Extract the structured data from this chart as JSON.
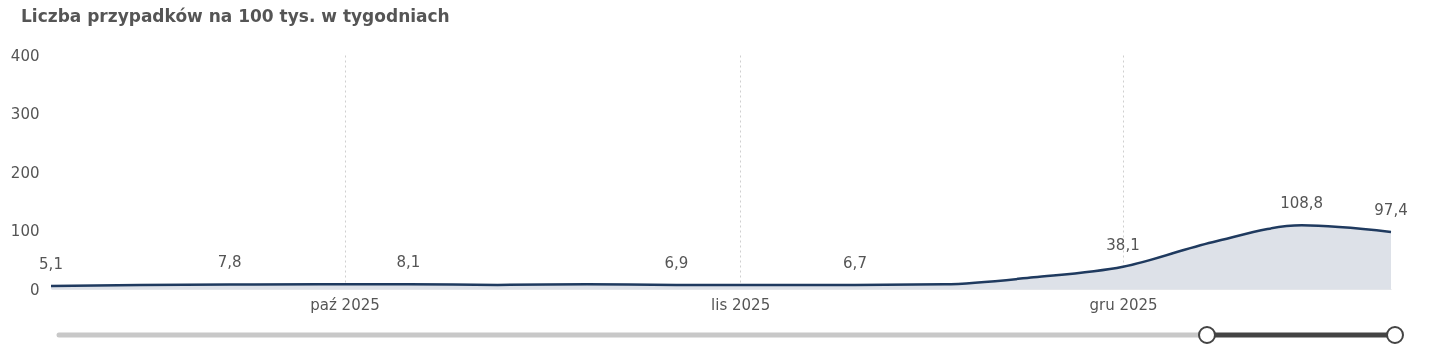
{
  "chart_data": {
    "type": "area",
    "title": "Liczba przypadków na 100 tys. w tygodniach",
    "x": [
      "2025-09-08",
      "2025-09-15",
      "2025-09-22",
      "2025-09-29",
      "2025-10-06",
      "2025-10-13",
      "2025-10-20",
      "2025-10-27",
      "2025-11-03",
      "2025-11-10",
      "2025-11-17",
      "2025-11-24",
      "2025-12-01",
      "2025-12-08",
      "2025-12-15",
      "2025-12-22"
    ],
    "series": [
      {
        "color": "#1f3a5f",
        "values": [
          5.1,
          7,
          7.8,
          8,
          8.1,
          7,
          8,
          6.9,
          7,
          6.7,
          8,
          20,
          38.1,
          80,
          108.8,
          97.4
        ],
        "value_labels": [
          "5,1",
          null,
          "7,8",
          null,
          "8,1",
          null,
          null,
          "6,9",
          null,
          "6,7",
          null,
          null,
          "38,1",
          null,
          "108,8",
          "97,4"
        ]
      }
    ],
    "xlim": [
      "2025-09-08",
      "2025-12-22"
    ],
    "xticks": [
      {
        "value": "2025-10-01",
        "label": "paź 2025"
      },
      {
        "value": "2025-11-01",
        "label": "lis 2025"
      },
      {
        "value": "2025-12-01",
        "label": "gru 2025"
      }
    ],
    "ylim": [
      0,
      400
    ],
    "yticks": [
      0,
      100,
      200,
      300,
      400
    ],
    "grid": "x"
  }
}
